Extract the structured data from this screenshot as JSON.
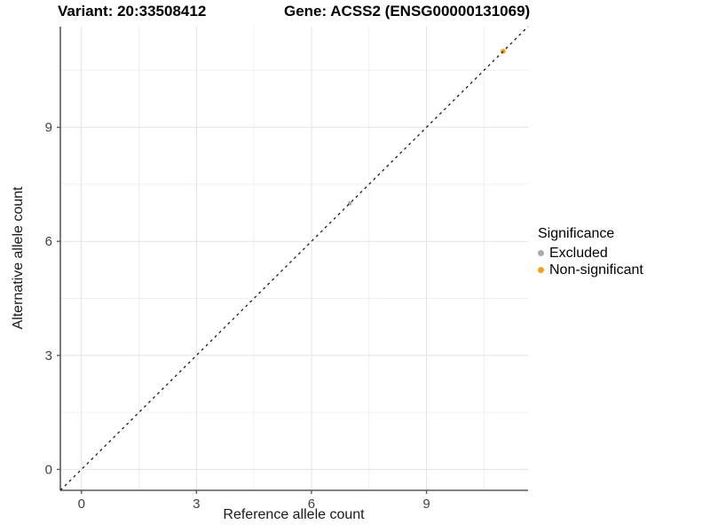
{
  "header": {
    "variant_title": "Variant: 20:33508412",
    "gene_title": "Gene: ACSS2 (ENSG00000131069)"
  },
  "axes": {
    "x_label": "Reference allele count",
    "y_label": "Alternative allele count"
  },
  "legend": {
    "title": "Significance",
    "items": [
      {
        "label": "Excluded",
        "color": "#ababab"
      },
      {
        "label": "Non-significant",
        "color": "#f8a01c"
      }
    ]
  },
  "chart_data": {
    "type": "scatter",
    "title": "Variant: 20:33508412   Gene: ACSS2 (ENSG00000131069)",
    "xlabel": "Reference allele count",
    "ylabel": "Alternative allele count",
    "xlim": [
      -0.55,
      11.65
    ],
    "ylim": [
      -0.55,
      11.65
    ],
    "xticks": [
      0,
      3,
      6,
      9
    ],
    "yticks": [
      0,
      3,
      6,
      9
    ],
    "xminor": [
      1.5,
      4.5,
      7.5,
      10.5
    ],
    "yminor": [
      1.5,
      4.5,
      7.5,
      10.5
    ],
    "grid": "major+minor",
    "legend_position": "right-middle",
    "identity_line": {
      "slope": 1,
      "intercept": 0,
      "style": "dashed",
      "color": "#1a1a1a"
    },
    "series": [
      {
        "name": "Excluded",
        "color": "#ababab",
        "marker_radius": 2.3,
        "points": [
          {
            "x": 7,
            "y": 7
          }
        ]
      },
      {
        "name": "Non-significant",
        "color": "#f8a01c",
        "marker_radius": 2.9,
        "points": [
          {
            "x": 11,
            "y": 11
          }
        ]
      }
    ]
  },
  "style": {
    "grid_major_color": "#e3e3e3",
    "grid_minor_color": "#f0f0f0",
    "axis_line_color": "#5a5a5a",
    "tick_label_color": "#404040"
  }
}
